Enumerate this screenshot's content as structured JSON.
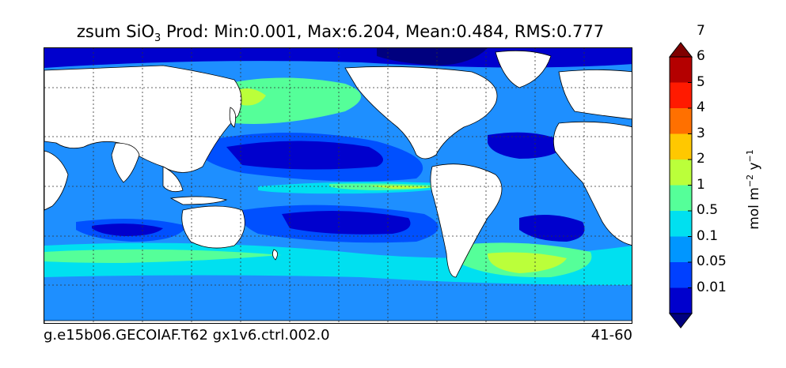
{
  "title": {
    "prefix": "zsum SiO",
    "subscript": "3",
    "rest": "  Prod: Min:0.001, Max:6.204, Mean:0.484, RMS:0.777"
  },
  "footer": {
    "run": "g.e15b06.GECOIAF.T62 gx1v6.ctrl.002.0",
    "years": "41-60"
  },
  "colorbar": {
    "unit_base": "mol m",
    "unit_exp1": "−2",
    "unit_mid": " y",
    "unit_exp2": "−1",
    "levels": [
      "0.01",
      "0.05",
      "0.1",
      "0.5",
      "1",
      "2",
      "3",
      "4",
      "5",
      "6",
      "7"
    ],
    "colors": [
      "#00007f",
      "#0000cd",
      "#0040ff",
      "#0096ff",
      "#00e0f0",
      "#55ff99",
      "#bbff3a",
      "#ffc800",
      "#ff7000",
      "#ff1a00",
      "#b40000",
      "#7f0000"
    ],
    "extend": "both"
  },
  "map": {
    "ocean_base_color": "#1e8fff",
    "land_color": "#ffffff",
    "gridlines": "dotted"
  }
}
